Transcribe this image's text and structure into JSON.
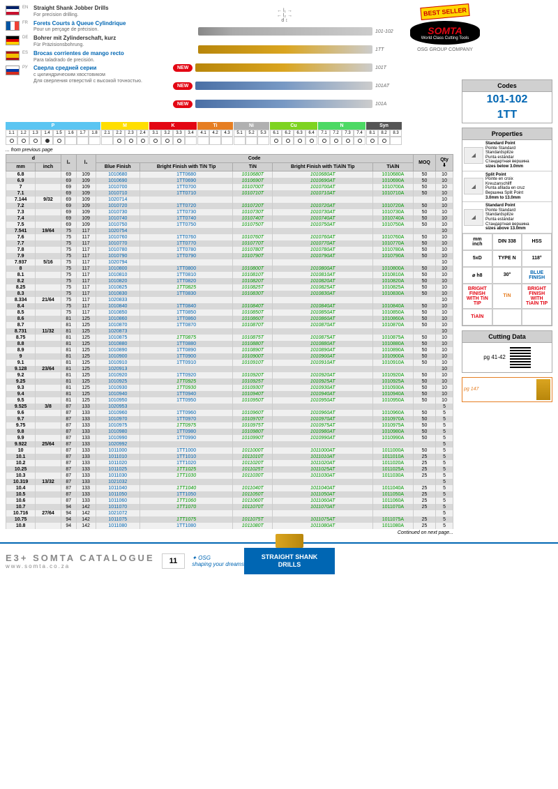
{
  "languages": [
    {
      "code": "EN",
      "flag": "en",
      "title": "Straight Shank Jobber Drills",
      "sub": "For precision drilling.",
      "color": "black"
    },
    {
      "code": "FR",
      "flag": "fr",
      "title": "Forets Courts à Queue Cylindrique",
      "sub": "Pour un perçage de précision.",
      "color": "blue"
    },
    {
      "code": "DE",
      "flag": "de",
      "title": "Bohrer mit Zylinderschaft, kurz",
      "sub": "Für Präzisionsbohrung.",
      "color": "black"
    },
    {
      "code": "ES",
      "flag": "es",
      "title": "Brocas corrientes de mango recto",
      "sub": "Para taladrado de precisión.",
      "color": "blue"
    },
    {
      "code": "РУ",
      "flag": "ru",
      "title": "Сверла средней серии",
      "sub": "с цилиндрическим хвостовиком\nДля сверления отверстий с высокой точностью.",
      "color": "blue"
    }
  ],
  "drill_variants": [
    {
      "label": "101-102",
      "new": false,
      "style": "plain"
    },
    {
      "label": "1TT",
      "new": false,
      "style": "gold"
    },
    {
      "label": "101T",
      "new": true,
      "style": "gold"
    },
    {
      "label": "101AT",
      "new": true,
      "style": "blue"
    },
    {
      "label": "101A",
      "new": true,
      "style": "blue"
    }
  ],
  "brand": {
    "best": "BEST SELLER",
    "name": "SOMTA",
    "tag": "World Class Cutting Tools",
    "osg": "OSG GROUP COMPANY"
  },
  "codes": {
    "hdr": "Codes",
    "v1": "101-102",
    "v2": "1TT"
  },
  "grade_groups": [
    {
      "name": "P",
      "color": "#5bc5f2",
      "cells": [
        "1.1",
        "1.2",
        "1.3",
        "1.4",
        "1.5",
        "1.6",
        "1.7",
        "1.8"
      ],
      "dots": [
        1,
        1,
        1,
        2,
        1,
        0,
        0,
        0
      ]
    },
    {
      "name": "M",
      "color": "#ffde00",
      "cells": [
        "2.1",
        "2.2",
        "2.3",
        "2.4"
      ],
      "dots": [
        0,
        1,
        1,
        1
      ]
    },
    {
      "name": "K",
      "color": "#e30613",
      "cells": [
        "3.1",
        "3.2",
        "3.3",
        "3.4"
      ],
      "dots": [
        1,
        1,
        1,
        0
      ]
    },
    {
      "name": "Ti",
      "color": "#e67e22",
      "cells": [
        "4.1",
        "4.2",
        "4.3"
      ],
      "dots": [
        0,
        0,
        0
      ]
    },
    {
      "name": "Ni",
      "color": "#b0b0b0",
      "cells": [
        "5.1",
        "5.2",
        "5.3"
      ],
      "dots": [
        0,
        0,
        0
      ]
    },
    {
      "name": "Cu",
      "color": "#7ed321",
      "cells": [
        "6.1",
        "6.2",
        "6.3",
        "6.4"
      ],
      "dots": [
        1,
        1,
        1,
        1
      ]
    },
    {
      "name": "N",
      "color": "#4cd964",
      "cells": [
        "7.1",
        "7.2",
        "7.3",
        "7.4"
      ],
      "dots": [
        1,
        1,
        1,
        1
      ]
    },
    {
      "name": "Syn",
      "color": "#555",
      "cells": [
        "8.1",
        "8.2",
        "8.3"
      ],
      "dots": [
        1,
        1,
        0
      ]
    }
  ],
  "table": {
    "prev": "... from previous page",
    "next": "Continued on next page...",
    "hdr_d": "d",
    "hdr_l2": "l₂",
    "hdr_l1": "l₁",
    "hdr_code": "Code",
    "hdr_moq": "MOQ",
    "hdr_qty": "Qty",
    "hdr_mm": "mm",
    "hdr_inch": "inch",
    "cols": [
      "Blue Finish",
      "Bright Finish with TiN Tip",
      "TiN",
      "Bright Finish with TiAlN Tip",
      "TiAlN"
    ]
  },
  "rows": [
    {
      "mm": "6.8",
      "inch": "",
      "l2": "69",
      "l1": "109",
      "c": [
        "1010680",
        "1TT0680",
        "1010680T",
        "1010680AT",
        "1010680A"
      ],
      "moq": "50",
      "qty": "10"
    },
    {
      "mm": "6.9",
      "inch": "",
      "l2": "69",
      "l1": "109",
      "c": [
        "1010690",
        "1TT0690",
        "1010690T",
        "1010690AT",
        "1010690A"
      ],
      "moq": "50",
      "qty": "10"
    },
    {
      "mm": "7",
      "inch": "",
      "l2": "69",
      "l1": "109",
      "c": [
        "1010700",
        "1TT0700",
        "1010700T",
        "1010700AT",
        "1010700A"
      ],
      "moq": "50",
      "qty": "10"
    },
    {
      "mm": "7.1",
      "inch": "",
      "l2": "69",
      "l1": "109",
      "c": [
        "1010710",
        "1TT0710",
        "1010710T",
        "1010710AT",
        "1010710A"
      ],
      "moq": "50",
      "qty": "10"
    },
    {
      "mm": "7.144",
      "inch": "9/32",
      "l2": "69",
      "l1": "109",
      "c": [
        "1020714",
        "",
        "",
        "",
        ""
      ],
      "moq": "",
      "qty": "10"
    },
    {
      "mm": "7.2",
      "inch": "",
      "l2": "69",
      "l1": "109",
      "c": [
        "1010720",
        "1TT0720",
        "1010720T",
        "1010720AT",
        "1010720A"
      ],
      "moq": "50",
      "qty": "10"
    },
    {
      "mm": "7.3",
      "inch": "",
      "l2": "69",
      "l1": "109",
      "c": [
        "1010730",
        "1TT0730",
        "1010730T",
        "1010730AT",
        "1010730A"
      ],
      "moq": "50",
      "qty": "10"
    },
    {
      "mm": "7.4",
      "inch": "",
      "l2": "69",
      "l1": "109",
      "c": [
        "1010740",
        "1TT0740",
        "1010740T",
        "1010740AT",
        "1010740A"
      ],
      "moq": "50",
      "qty": "10"
    },
    {
      "mm": "7.5",
      "inch": "",
      "l2": "69",
      "l1": "109",
      "c": [
        "1010750",
        "1TT0750",
        "1010750T",
        "1010750AT",
        "1010750A"
      ],
      "moq": "50",
      "qty": "10"
    },
    {
      "mm": "7.541",
      "inch": "19/64",
      "l2": "75",
      "l1": "117",
      "c": [
        "1020754",
        "",
        "",
        "",
        ""
      ],
      "moq": "",
      "qty": "10"
    },
    {
      "mm": "7.6",
      "inch": "",
      "l2": "75",
      "l1": "117",
      "c": [
        "1010760",
        "1TT0760",
        "1010760T",
        "1010760AT",
        "1010760A"
      ],
      "moq": "50",
      "qty": "10"
    },
    {
      "mm": "7.7",
      "inch": "",
      "l2": "75",
      "l1": "117",
      "c": [
        "1010770",
        "1TT0770",
        "1010770T",
        "1010770AT",
        "1010770A"
      ],
      "moq": "50",
      "qty": "10"
    },
    {
      "mm": "7.8",
      "inch": "",
      "l2": "75",
      "l1": "117",
      "c": [
        "1010780",
        "1TT0780",
        "1010780T",
        "1010780AT",
        "1010780A"
      ],
      "moq": "50",
      "qty": "10"
    },
    {
      "mm": "7.9",
      "inch": "",
      "l2": "75",
      "l1": "117",
      "c": [
        "1010790",
        "1TT0790",
        "1010790T",
        "1010790AT",
        "1010790A"
      ],
      "moq": "50",
      "qty": "10"
    },
    {
      "mm": "7.937",
      "inch": "5/16",
      "l2": "75",
      "l1": "117",
      "c": [
        "1020794",
        "",
        "",
        "",
        ""
      ],
      "moq": "",
      "qty": "10"
    },
    {
      "mm": "8",
      "inch": "",
      "l2": "75",
      "l1": "117",
      "c": [
        "1010800",
        "1TT0800",
        "1010800T",
        "1010800AT",
        "1010800A"
      ],
      "moq": "50",
      "qty": "10"
    },
    {
      "mm": "8.1",
      "inch": "",
      "l2": "75",
      "l1": "117",
      "c": [
        "1010810",
        "1TT0810",
        "1010810T",
        "1010810AT",
        "1010810A"
      ],
      "moq": "50",
      "qty": "10"
    },
    {
      "mm": "8.2",
      "inch": "",
      "l2": "75",
      "l1": "117",
      "c": [
        "1010820",
        "1TT0820",
        "1010820T",
        "1010820AT",
        "1010820A"
      ],
      "moq": "50",
      "qty": "10"
    },
    {
      "mm": "8.25",
      "inch": "",
      "l2": "75",
      "l1": "117",
      "c": [
        "1010825",
        "1TT0825",
        "1010825T",
        "1010825AT",
        "1010825A"
      ],
      "moq": "50",
      "qty": "10",
      "it": 1
    },
    {
      "mm": "8.3",
      "inch": "",
      "l2": "75",
      "l1": "117",
      "c": [
        "1010830",
        "1TT0830",
        "1010830T",
        "1010830AT",
        "1010830A"
      ],
      "moq": "50",
      "qty": "10"
    },
    {
      "mm": "8.334",
      "inch": "21/64",
      "l2": "75",
      "l1": "117",
      "c": [
        "1020833",
        "",
        "",
        "",
        ""
      ],
      "moq": "",
      "qty": "10"
    },
    {
      "mm": "8.4",
      "inch": "",
      "l2": "75",
      "l1": "117",
      "c": [
        "1010840",
        "1TT0840",
        "1010840T",
        "1010840AT",
        "1010840A"
      ],
      "moq": "50",
      "qty": "10"
    },
    {
      "mm": "8.5",
      "inch": "",
      "l2": "75",
      "l1": "117",
      "c": [
        "1010850",
        "1TT0850",
        "1010850T",
        "1010850AT",
        "1010850A"
      ],
      "moq": "50",
      "qty": "10"
    },
    {
      "mm": "8.6",
      "inch": "",
      "l2": "81",
      "l1": "125",
      "c": [
        "1010860",
        "1TT0860",
        "1010860T",
        "1010860AT",
        "1010860A"
      ],
      "moq": "50",
      "qty": "10"
    },
    {
      "mm": "8.7",
      "inch": "",
      "l2": "81",
      "l1": "125",
      "c": [
        "1010870",
        "1TT0870",
        "1010870T",
        "1010870AT",
        "1010870A"
      ],
      "moq": "50",
      "qty": "10"
    },
    {
      "mm": "8.731",
      "inch": "11/32",
      "l2": "81",
      "l1": "125",
      "c": [
        "1020873",
        "",
        "",
        "",
        ""
      ],
      "moq": "",
      "qty": "10"
    },
    {
      "mm": "8.75",
      "inch": "",
      "l2": "81",
      "l1": "125",
      "c": [
        "1010875",
        "1TT0875",
        "1010875T",
        "1010875AT",
        "1010875A"
      ],
      "moq": "50",
      "qty": "10",
      "it": 1
    },
    {
      "mm": "8.8",
      "inch": "",
      "l2": "81",
      "l1": "125",
      "c": [
        "1010880",
        "1TT0880",
        "1010880T",
        "1010880AT",
        "1010880A"
      ],
      "moq": "50",
      "qty": "10"
    },
    {
      "mm": "8.9",
      "inch": "",
      "l2": "81",
      "l1": "125",
      "c": [
        "1010890",
        "1TT0890",
        "1010890T",
        "1010890AT",
        "1010890A"
      ],
      "moq": "50",
      "qty": "10"
    },
    {
      "mm": "9",
      "inch": "",
      "l2": "81",
      "l1": "125",
      "c": [
        "1010900",
        "1TT0900",
        "1010900T",
        "1010900AT",
        "1010900A"
      ],
      "moq": "50",
      "qty": "10"
    },
    {
      "mm": "9.1",
      "inch": "",
      "l2": "81",
      "l1": "125",
      "c": [
        "1010910",
        "1TT0910",
        "1010910T",
        "1010910AT",
        "1010910A"
      ],
      "moq": "50",
      "qty": "10"
    },
    {
      "mm": "9.128",
      "inch": "23/64",
      "l2": "81",
      "l1": "125",
      "c": [
        "1020913",
        "",
        "",
        "",
        ""
      ],
      "moq": "",
      "qty": "10"
    },
    {
      "mm": "9.2",
      "inch": "",
      "l2": "81",
      "l1": "125",
      "c": [
        "1010920",
        "1TT0920",
        "1010920T",
        "1010920AT",
        "1010920A"
      ],
      "moq": "50",
      "qty": "10"
    },
    {
      "mm": "9.25",
      "inch": "",
      "l2": "81",
      "l1": "125",
      "c": [
        "1010925",
        "1TT0925",
        "1010925T",
        "1010925AT",
        "1010925A"
      ],
      "moq": "50",
      "qty": "10",
      "it": 1
    },
    {
      "mm": "9.3",
      "inch": "",
      "l2": "81",
      "l1": "125",
      "c": [
        "1010930",
        "1TT0930",
        "1010930T",
        "1010930AT",
        "1010930A"
      ],
      "moq": "50",
      "qty": "10",
      "it": 1
    },
    {
      "mm": "9.4",
      "inch": "",
      "l2": "81",
      "l1": "125",
      "c": [
        "1010940",
        "1TT0940",
        "1010940T",
        "1010940AT",
        "1010940A"
      ],
      "moq": "50",
      "qty": "10"
    },
    {
      "mm": "9.5",
      "inch": "",
      "l2": "81",
      "l1": "125",
      "c": [
        "1010950",
        "1TT0950",
        "1010950T",
        "1010950AT",
        "1010950A"
      ],
      "moq": "50",
      "qty": "10"
    },
    {
      "mm": "9.525",
      "inch": "3/8",
      "l2": "87",
      "l1": "133",
      "c": [
        "1020953",
        "",
        "",
        "",
        ""
      ],
      "moq": "",
      "qty": "5"
    },
    {
      "mm": "9.6",
      "inch": "",
      "l2": "87",
      "l1": "133",
      "c": [
        "1010960",
        "1TT0960",
        "1010960T",
        "1010960AT",
        "1010960A"
      ],
      "moq": "50",
      "qty": "5"
    },
    {
      "mm": "9.7",
      "inch": "",
      "l2": "87",
      "l1": "133",
      "c": [
        "1010970",
        "1TT0970",
        "1010970T",
        "1010970AT",
        "1010970A"
      ],
      "moq": "50",
      "qty": "5"
    },
    {
      "mm": "9.75",
      "inch": "",
      "l2": "87",
      "l1": "133",
      "c": [
        "1010975",
        "1TT0975",
        "1010975T",
        "1010975AT",
        "1010975A"
      ],
      "moq": "50",
      "qty": "5",
      "it": 1
    },
    {
      "mm": "9.8",
      "inch": "",
      "l2": "87",
      "l1": "133",
      "c": [
        "1010980",
        "1TT0980",
        "1010980T",
        "1010980AT",
        "1010980A"
      ],
      "moq": "50",
      "qty": "5"
    },
    {
      "mm": "9.9",
      "inch": "",
      "l2": "87",
      "l1": "133",
      "c": [
        "1010990",
        "1TT0990",
        "1010990T",
        "1010990AT",
        "1010990A"
      ],
      "moq": "50",
      "qty": "5"
    },
    {
      "mm": "9.922",
      "inch": "25/64",
      "l2": "87",
      "l1": "133",
      "c": [
        "1020992",
        "",
        "",
        "",
        ""
      ],
      "moq": "",
      "qty": "5"
    },
    {
      "mm": "10",
      "inch": "",
      "l2": "87",
      "l1": "133",
      "c": [
        "1011000",
        "1TT1000",
        "1011000T",
        "1011000AT",
        "1011000A"
      ],
      "moq": "50",
      "qty": "5"
    },
    {
      "mm": "10.1",
      "inch": "",
      "l2": "87",
      "l1": "133",
      "c": [
        "1011010",
        "1TT1010",
        "1011010T",
        "1011010AT",
        "1011010A"
      ],
      "moq": "25",
      "qty": "5"
    },
    {
      "mm": "10.2",
      "inch": "",
      "l2": "87",
      "l1": "133",
      "c": [
        "1011020",
        "1TT1020",
        "1011020T",
        "1011020AT",
        "1011020A"
      ],
      "moq": "25",
      "qty": "5"
    },
    {
      "mm": "10.25",
      "inch": "",
      "l2": "87",
      "l1": "133",
      "c": [
        "1011025",
        "1TT1025",
        "1011025T",
        "1011025AT",
        "1011025A"
      ],
      "moq": "25",
      "qty": "5",
      "it": 1
    },
    {
      "mm": "10.3",
      "inch": "",
      "l2": "87",
      "l1": "133",
      "c": [
        "1011030",
        "1TT1030",
        "1011030T",
        "1011030AT",
        "1011030A"
      ],
      "moq": "25",
      "qty": "5",
      "it": 1
    },
    {
      "mm": "10.319",
      "inch": "13/32",
      "l2": "87",
      "l1": "133",
      "c": [
        "1021032",
        "",
        "",
        "",
        ""
      ],
      "moq": "",
      "qty": "5"
    },
    {
      "mm": "10.4",
      "inch": "",
      "l2": "87",
      "l1": "133",
      "c": [
        "1011040",
        "1TT1040",
        "1011040T",
        "1011040AT",
        "1011040A"
      ],
      "moq": "25",
      "qty": "5",
      "it": 1
    },
    {
      "mm": "10.5",
      "inch": "",
      "l2": "87",
      "l1": "133",
      "c": [
        "1011050",
        "1TT1050",
        "1011050T",
        "1011050AT",
        "1011050A"
      ],
      "moq": "25",
      "qty": "5"
    },
    {
      "mm": "10.6",
      "inch": "",
      "l2": "87",
      "l1": "133",
      "c": [
        "1011060",
        "1TT1060",
        "1011060T",
        "1011060AT",
        "1011060A"
      ],
      "moq": "25",
      "qty": "5",
      "it": 1
    },
    {
      "mm": "10.7",
      "inch": "",
      "l2": "94",
      "l1": "142",
      "c": [
        "1011070",
        "1TT1070",
        "1011070T",
        "1011070AT",
        "1011070A"
      ],
      "moq": "25",
      "qty": "5",
      "it": 1
    },
    {
      "mm": "10.716",
      "inch": "27/64",
      "l2": "94",
      "l1": "142",
      "c": [
        "1021072",
        "",
        "",
        "",
        ""
      ],
      "moq": "",
      "qty": "5"
    },
    {
      "mm": "10.75",
      "inch": "",
      "l2": "94",
      "l1": "142",
      "c": [
        "1011075",
        "1TT1075",
        "1011075T",
        "1011075AT",
        "1011075A"
      ],
      "moq": "25",
      "qty": "5",
      "it": 1
    },
    {
      "mm": "10.8",
      "inch": "",
      "l2": "94",
      "l1": "142",
      "c": [
        "1011080",
        "1TT1080",
        "1011080T",
        "1011080AT",
        "1011080A"
      ],
      "moq": "25",
      "qty": "5"
    }
  ],
  "properties": {
    "hdr": "Properties",
    "points": [
      {
        "title": "Standard Point",
        "lines": [
          "Pointe Standard",
          "Standardspitze",
          "Punta estándar",
          "Стандартная вершина"
        ],
        "note": "sizes below 3.0mm"
      },
      {
        "title": "Split Point",
        "lines": [
          "Pointe en croix",
          "Kreuzanschliff",
          "Punta afilada en cruz",
          "Вершина Split Point"
        ],
        "note": "3.0mm to 13.0mm"
      },
      {
        "title": "Standard Point",
        "lines": [
          "Pointe Standard",
          "Standardspitze",
          "Punta estándar",
          "Стандартная вершина"
        ],
        "note": "sizes above 13.0mm"
      }
    ],
    "grid": [
      [
        "mm\ninch",
        "DIN 338",
        "HSS"
      ],
      [
        "5xD",
        "TYPE N",
        "118°"
      ],
      [
        "⌀ h8",
        "30°",
        "BLUE FINISH"
      ],
      [
        "BRIGHT FINISH WITH TiN TIP",
        "TiN",
        "BRIGHT FINISH WITH TiAlN TIP"
      ],
      [
        "TiAlN",
        "",
        ""
      ]
    ],
    "grid_colors": [
      [
        "",
        "",
        ""
      ],
      [
        "",
        "",
        ""
      ],
      [
        "",
        "",
        "blue"
      ],
      [
        "red",
        "orange",
        "red"
      ],
      [
        "red",
        "",
        ""
      ]
    ]
  },
  "cutting": {
    "hdr": "Cutting Data",
    "pg": "pg 41-42",
    "pg147": "pg 147"
  },
  "footer": {
    "title": "E3+ SOMTA CATALOGUE",
    "url": "www.somta.co.za",
    "page": "11",
    "osg": "shaping your dreams",
    "right": "STRAIGHT SHANK DRILLS"
  }
}
